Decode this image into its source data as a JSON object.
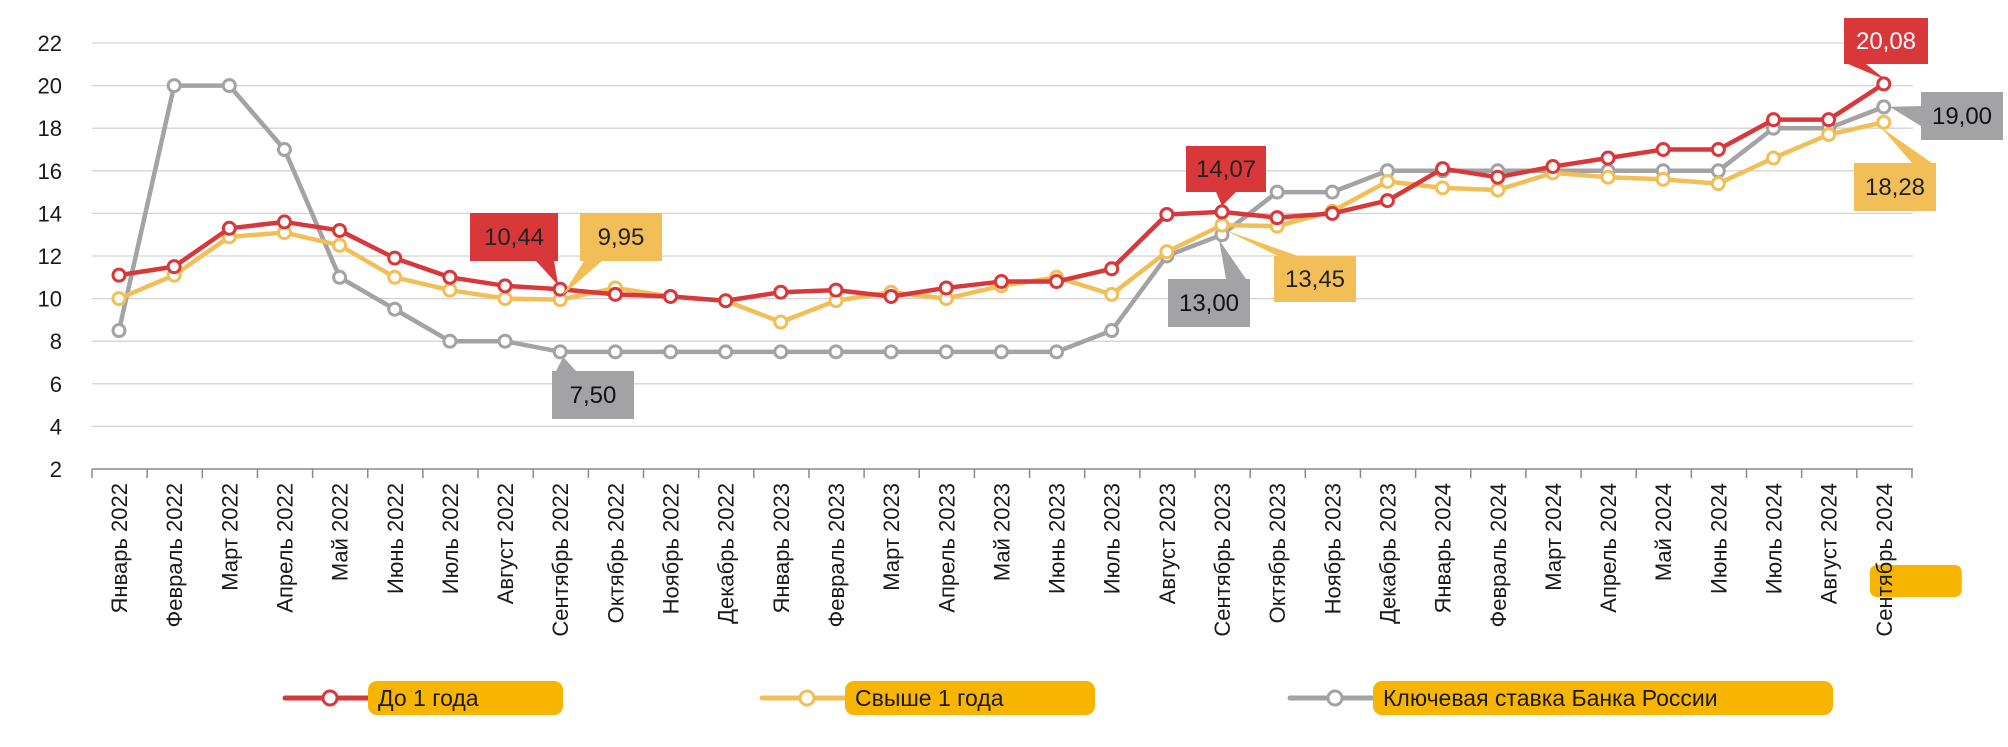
{
  "chart_data": {
    "type": "line",
    "categories": [
      "Январь 2022",
      "Февраль 2022",
      "Март 2022",
      "Апрель 2022",
      "Май 2022",
      "Июнь 2022",
      "Июль 2022",
      "Август 2022",
      "Сентябрь 2022",
      "Октябрь 2022",
      "Ноябрь 2022",
      "Декабрь 2022",
      "Январь 2023",
      "Февраль 2023",
      "Март 2023",
      "Апрель 2023",
      "Май 2023",
      "Июнь 2023",
      "Июль 2023",
      "Август 2023",
      "Сентябрь 2023",
      "Октябрь 2023",
      "Ноябрь 2023",
      "Декабрь 2023",
      "Январь 2024",
      "Февраль 2024",
      "Март 2024",
      "Апрель 2024",
      "Май 2024",
      "Июнь 2024",
      "Июль 2024",
      "Август 2024",
      "Сентябрь 2024"
    ],
    "highlight_category": "Сентябрь 2024",
    "ylim": [
      2,
      22
    ],
    "yticks": [
      2,
      4,
      6,
      8,
      10,
      12,
      14,
      16,
      18,
      20,
      22
    ],
    "grid": true,
    "legend_position": "bottom",
    "series": [
      {
        "name": "До 1 года",
        "color": "#d9383a",
        "values": [
          11.1,
          11.5,
          13.3,
          13.6,
          13.2,
          11.9,
          11.0,
          10.6,
          10.44,
          10.2,
          10.1,
          9.9,
          10.3,
          10.4,
          10.1,
          10.5,
          10.8,
          10.8,
          11.4,
          13.95,
          14.07,
          13.8,
          14.0,
          14.6,
          16.1,
          15.7,
          16.2,
          16.6,
          17.0,
          17.0,
          18.4,
          18.4,
          20.08
        ]
      },
      {
        "name": "Свыше 1 года",
        "color": "#f2be58",
        "values": [
          10.0,
          11.1,
          12.9,
          13.1,
          12.5,
          11.0,
          10.4,
          10.0,
          9.95,
          10.5,
          10.1,
          9.9,
          8.9,
          9.9,
          10.3,
          10.0,
          10.6,
          11.0,
          10.2,
          12.2,
          13.45,
          13.4,
          14.1,
          15.5,
          15.2,
          15.1,
          15.9,
          15.7,
          15.6,
          15.4,
          16.6,
          17.7,
          18.28
        ]
      },
      {
        "name": "Ключевая ставка Банка России",
        "color": "#a3a3a5",
        "values": [
          8.5,
          20.0,
          20.0,
          17.0,
          11.0,
          9.5,
          8.0,
          8.0,
          7.5,
          7.5,
          7.5,
          7.5,
          7.5,
          7.5,
          7.5,
          7.5,
          7.5,
          7.5,
          8.5,
          12.0,
          13.0,
          15.0,
          15.0,
          16.0,
          16.0,
          16.0,
          16.0,
          16.0,
          16.0,
          16.0,
          18.0,
          18.0,
          19.0
        ]
      }
    ],
    "callouts": [
      {
        "label": "10,44",
        "series": 0,
        "index": 8,
        "color": "#d9383a",
        "text_color": "#222222"
      },
      {
        "label": "9,95",
        "series": 1,
        "index": 8,
        "color": "#f2be58",
        "text_color": "#222222"
      },
      {
        "label": "7,50",
        "series": 2,
        "index": 8,
        "color": "#a3a3a5",
        "text_color": "#111111"
      },
      {
        "label": "14,07",
        "series": 0,
        "index": 20,
        "color": "#d9383a",
        "text_color": "#222222"
      },
      {
        "label": "13,00",
        "series": 2,
        "index": 20,
        "color": "#a3a3a5",
        "text_color": "#111111"
      },
      {
        "label": "13,45",
        "series": 1,
        "index": 20,
        "color": "#f2be58",
        "text_color": "#222222"
      },
      {
        "label": "20,08",
        "series": 0,
        "index": 32,
        "color": "#d9383a",
        "text_color": "#ffffff"
      },
      {
        "label": "19,00",
        "series": 2,
        "index": 32,
        "color": "#a3a3a5",
        "text_color": "#111111"
      },
      {
        "label": "18,28",
        "series": 1,
        "index": 32,
        "color": "#f2be58",
        "text_color": "#222222"
      }
    ]
  },
  "colors": {
    "grid": "#d4d4d4",
    "axis": "#8a8a8a",
    "highlight": "#f7b500"
  }
}
